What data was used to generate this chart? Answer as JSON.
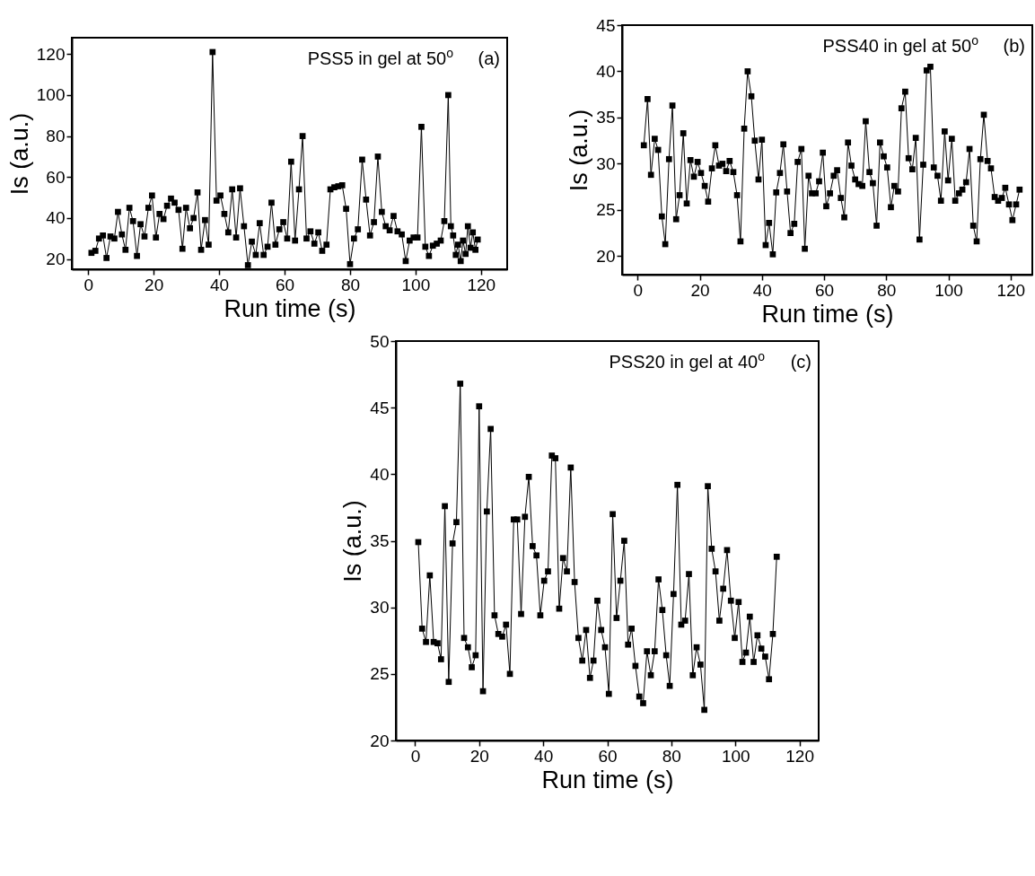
{
  "chart_data": [
    {
      "type": "line",
      "xlabel": "Run time (s)",
      "ylabel": "Is (a.u.)",
      "marker": "square",
      "line_style": "solid",
      "annotations": [
        "PSS5 in gel at 50$^{o}$",
        "(a)"
      ],
      "xlim": [
        -5,
        128
      ],
      "ylim": [
        15,
        128
      ],
      "xticks": [
        0,
        20,
        40,
        60,
        80,
        100,
        120
      ],
      "yticks": [
        20,
        40,
        60,
        80,
        100,
        120
      ],
      "x": [
        1,
        2.2,
        3.3,
        4.5,
        5.6,
        6.8,
        8,
        9.1,
        10.3,
        11.4,
        12.6,
        13.7,
        14.9,
        16,
        17.2,
        18.4,
        19.5,
        20.7,
        21.8,
        23,
        24.1,
        25.3,
        26.4,
        27.6,
        28.8,
        29.9,
        31.1,
        32.2,
        33.4,
        34.5,
        35.7,
        36.8,
        38,
        39.2,
        40.4,
        41.6,
        42.8,
        44,
        45.2,
        46.4,
        47.6,
        48.8,
        50,
        51.2,
        52.4,
        53.6,
        54.8,
        56,
        57.2,
        58.4,
        59.6,
        60.8,
        62,
        63.2,
        64.4,
        65.5,
        66.7,
        67.9,
        69.1,
        70.3,
        71.5,
        72.8,
        74,
        75.2,
        76.4,
        77.6,
        78.8,
        80,
        81.2,
        82.4,
        83.7,
        84.9,
        86.1,
        87.3,
        88.5,
        89.7,
        90.9,
        92.1,
        93.3,
        94.5,
        95.8,
        97,
        98.2,
        99.4,
        100.6,
        101.8,
        103,
        104.1,
        105.3,
        106.5,
        107.7,
        108.8,
        110,
        110.8,
        111.5,
        112.3,
        113,
        113.8,
        114.5,
        115.3,
        116,
        116.8,
        117.5,
        118.3,
        119
      ],
      "series": [
        {
          "color": "#000000",
          "values": [
            23,
            24,
            30,
            31.5,
            20.5,
            31,
            30,
            43,
            32,
            24.5,
            45,
            38.5,
            21.5,
            37,
            31,
            45,
            51,
            30.5,
            42,
            39.5,
            46,
            49.5,
            47.5,
            44,
            25,
            45,
            35,
            40,
            52.5,
            24.5,
            39,
            27,
            121,
            48.5,
            51,
            42,
            33,
            54,
            30.5,
            54.5,
            36,
            17,
            28.5,
            22,
            37.5,
            22,
            26,
            47.5,
            27,
            34.5,
            38,
            30,
            67.5,
            29,
            54,
            80,
            30,
            33.5,
            27.5,
            33,
            24,
            27,
            54,
            55,
            55.5,
            56,
            44.5,
            17.5,
            30,
            34.5,
            68.5,
            49,
            31.5,
            38,
            70,
            43,
            36,
            34,
            41,
            33.5,
            32,
            19,
            29,
            30.5,
            30.5,
            84.5,
            26,
            21.5,
            26.5,
            27.5,
            29,
            38.5,
            100,
            36,
            31.5,
            22,
            27,
            19,
            29,
            22.5,
            36,
            25.5,
            33,
            24.5,
            29.5
          ]
        }
      ]
    },
    {
      "type": "line",
      "xlabel": "Run time (s)",
      "ylabel": "Is (a.u.)",
      "marker": "square",
      "line_style": "solid",
      "annotations": [
        "PSS40 in gel at 50$^{o}$",
        "(b)"
      ],
      "xlim": [
        -5,
        127
      ],
      "ylim": [
        18,
        45
      ],
      "xticks": [
        0,
        20,
        40,
        60,
        80,
        100,
        120
      ],
      "yticks": [
        20,
        25,
        30,
        35,
        40,
        45
      ],
      "x": [
        2,
        3.2,
        4.3,
        5.5,
        6.6,
        7.8,
        8.9,
        10.1,
        11.2,
        12.4,
        13.5,
        14.7,
        15.8,
        17,
        18.1,
        19.3,
        20.4,
        21.6,
        22.7,
        23.9,
        25,
        26.2,
        27.3,
        28.5,
        29.6,
        30.8,
        32,
        33.1,
        34.3,
        35.4,
        36.6,
        37.7,
        38.9,
        40,
        41.2,
        42.3,
        43.5,
        44.6,
        45.8,
        46.9,
        48.1,
        49.2,
        50.4,
        51.5,
        52.7,
        53.8,
        55,
        56.1,
        57.3,
        58.4,
        59.6,
        60.7,
        61.9,
        63.1,
        64.2,
        65.4,
        66.5,
        67.7,
        68.8,
        70,
        71.1,
        72.3,
        73.4,
        74.6,
        75.7,
        76.9,
        78,
        79.2,
        80.3,
        81.5,
        82.6,
        83.8,
        84.9,
        86.1,
        87.2,
        88.4,
        89.5,
        90.7,
        91.9,
        93,
        94.2,
        95.3,
        96.5,
        97.6,
        98.8,
        99.9,
        101.1,
        102.2,
        103.4,
        104.5,
        105.7,
        106.8,
        108,
        109.1,
        110.3,
        111.4,
        112.6,
        113.7,
        114.9,
        116,
        117.2,
        118.3,
        119.5,
        120.6,
        121.8,
        122.9
      ],
      "series": [
        {
          "color": "#000000",
          "values": [
            32,
            37,
            28.8,
            32.7,
            31.5,
            24.3,
            21.3,
            30.5,
            36.3,
            24,
            26.6,
            33.3,
            25.7,
            30.4,
            28.6,
            30.2,
            29,
            27.6,
            25.9,
            29.5,
            32,
            29.8,
            30,
            29.2,
            30.3,
            29.1,
            26.6,
            21.6,
            33.8,
            40,
            37.3,
            32.5,
            28.3,
            32.6,
            21.2,
            23.6,
            20.2,
            26.9,
            29,
            32.1,
            27,
            22.5,
            23.5,
            30.2,
            31.6,
            20.8,
            28.7,
            26.8,
            26.8,
            28.1,
            31.2,
            25.4,
            26.8,
            28.7,
            29.3,
            26.3,
            24.2,
            32.3,
            29.8,
            28.3,
            27.8,
            27.6,
            34.6,
            29.1,
            27.9,
            23.3,
            32.3,
            30.8,
            29.6,
            25.3,
            27.6,
            27,
            36,
            37.8,
            30.6,
            29.4,
            32.8,
            21.8,
            29.9,
            40.1,
            40.5,
            29.6,
            28.7,
            26,
            33.5,
            28.2,
            32.7,
            26,
            26.8,
            27.2,
            28,
            31.6,
            23.3,
            21.6,
            30.5,
            35.3,
            30.3,
            29.5,
            26.4,
            26,
            26.3,
            27.4,
            25.6,
            23.9,
            25.6,
            27.2
          ]
        }
      ]
    },
    {
      "type": "line",
      "xlabel": "Run time (s)",
      "ylabel": "Is (a.u.)",
      "marker": "square",
      "line_style": "solid",
      "annotations": [
        "PSS20 in gel at 40$^{o}$",
        "(c)"
      ],
      "xlim": [
        -6,
        126
      ],
      "ylim": [
        20,
        50
      ],
      "xticks": [
        0,
        20,
        40,
        60,
        80,
        100,
        120
      ],
      "yticks": [
        20,
        25,
        30,
        35,
        40,
        45,
        50
      ],
      "x": [
        1,
        2.2,
        3.4,
        4.6,
        5.8,
        7,
        8.1,
        9.3,
        10.5,
        11.7,
        12.9,
        14.1,
        15.3,
        16.5,
        17.7,
        18.9,
        20,
        21.2,
        22.4,
        23.6,
        24.8,
        26,
        27.2,
        28.4,
        29.6,
        30.8,
        31.9,
        33.1,
        34.3,
        35.5,
        36.7,
        37.9,
        39.1,
        40.3,
        41.5,
        42.7,
        43.8,
        45,
        46.2,
        47.4,
        48.6,
        49.8,
        51,
        52.2,
        53.4,
        54.6,
        55.7,
        56.9,
        58.1,
        59.3,
        60.5,
        61.7,
        62.9,
        64.1,
        65.3,
        66.5,
        67.6,
        68.8,
        70,
        71.2,
        72.4,
        73.6,
        74.8,
        76,
        77.2,
        78.4,
        79.5,
        80.7,
        81.9,
        83.1,
        84.3,
        85.5,
        86.7,
        87.9,
        89.1,
        90.3,
        91.4,
        92.6,
        93.8,
        95,
        96.2,
        97.4,
        98.6,
        99.8,
        101,
        102.2,
        103.3,
        104.5,
        105.7,
        106.9,
        108.1,
        109.3,
        110.5,
        111.7,
        112.9
      ],
      "series": [
        {
          "color": "#000000",
          "values": [
            34.9,
            28.4,
            27.4,
            32.4,
            27.4,
            27.3,
            26.1,
            37.6,
            24.4,
            34.8,
            36.4,
            46.8,
            27.7,
            27,
            25.5,
            26.4,
            45.1,
            23.7,
            37.2,
            43.4,
            29.4,
            28,
            27.8,
            28.7,
            25,
            36.6,
            36.6,
            29.5,
            36.8,
            39.8,
            34.6,
            33.9,
            29.4,
            32,
            32.7,
            41.4,
            41.2,
            29.9,
            33.7,
            32.7,
            40.5,
            31.9,
            27.7,
            26,
            28.3,
            24.7,
            26,
            30.5,
            28.3,
            27,
            23.5,
            37,
            29.2,
            32,
            35,
            27.2,
            28.4,
            25.6,
            23.3,
            22.8,
            26.7,
            24.9,
            26.7,
            32.1,
            29.8,
            26.4,
            24.1,
            31,
            39.2,
            28.7,
            29,
            32.5,
            24.9,
            27,
            25.7,
            22.3,
            39.1,
            34.4,
            32.7,
            29,
            31.4,
            34.3,
            30.5,
            27.7,
            30.4,
            25.9,
            26.6,
            29.3,
            25.9,
            27.9,
            26.9,
            26.3,
            24.6,
            28,
            33.8
          ]
        }
      ]
    }
  ]
}
